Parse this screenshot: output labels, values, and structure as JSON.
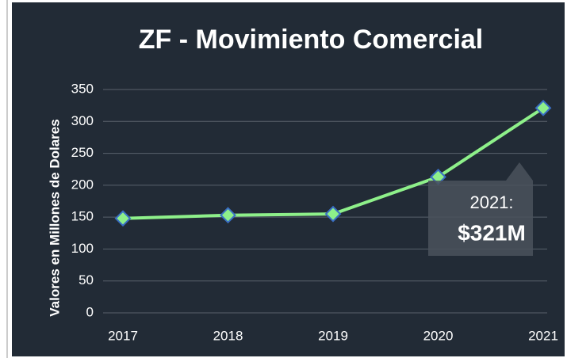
{
  "chart_data": {
    "type": "line",
    "title": "ZF - Movimiento Comercial",
    "y_label": "Valores en Millones de Dolares",
    "categories": [
      "2017",
      "2018",
      "2019",
      "2020",
      "2021"
    ],
    "series": [
      {
        "name": "Movimiento Comercial",
        "color": "#8ef08a",
        "values": [
          148,
          153,
          155,
          213,
          321
        ]
      }
    ],
    "ylim": [
      0,
      350
    ],
    "yticks": [
      0,
      50,
      100,
      150,
      200,
      250,
      300,
      350
    ],
    "grid": true,
    "annotation": {
      "title": "2021:",
      "text": "$321M"
    }
  }
}
